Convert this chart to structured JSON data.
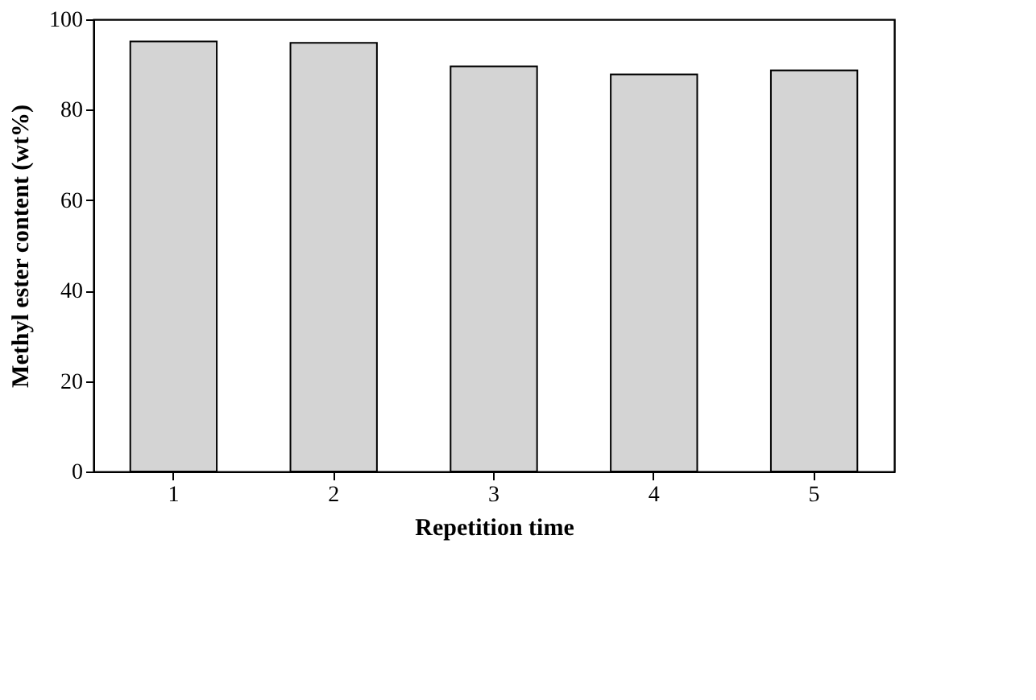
{
  "chart_data": {
    "type": "bar",
    "xlabel": "Repetition time",
    "ylabel": "Methyl ester content (wt%)",
    "categories": [
      "1",
      "2",
      "3",
      "4",
      "5"
    ],
    "values": [
      95.1,
      94.8,
      89.6,
      87.8,
      88.7
    ],
    "color": "#d4d4d4",
    "ylim": [
      0,
      100
    ],
    "yticks": [
      0,
      20,
      40,
      60,
      80,
      100
    ],
    "grid": false
  }
}
